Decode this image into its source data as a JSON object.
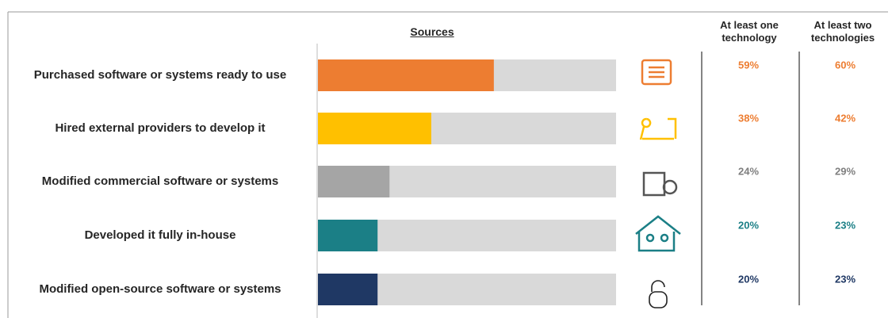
{
  "chart_data": {
    "type": "bar",
    "title": "Sources",
    "categories": [
      "Purchased software or systems ready to use",
      "Hired external providers to develop it",
      "Modified commercial software or systems",
      "Developed it fully in-house",
      "Modified open-source software or systems"
    ],
    "colors": [
      "#ED7D31",
      "#FFC000",
      "#A5A5A5",
      "#1B7F86",
      "#1F3864"
    ],
    "label_colors": [
      "#ED7D31",
      "#ED7D31",
      "#7F7F7F",
      "#1B7F86",
      "#1F3864"
    ],
    "track_color": "#D9D9D9",
    "xlim": [
      0,
      100
    ],
    "series": [
      {
        "name": "At least one technology",
        "values": [
          59,
          38,
          24,
          20,
          20
        ],
        "value_labels": [
          "59%",
          "38%",
          "24%",
          "20%",
          "20%"
        ]
      },
      {
        "name": "At least two technologies",
        "values": [
          60,
          42,
          29,
          23,
          23
        ],
        "value_labels": [
          "60%",
          "42%",
          "29%",
          "23%",
          "23%"
        ]
      }
    ]
  }
}
